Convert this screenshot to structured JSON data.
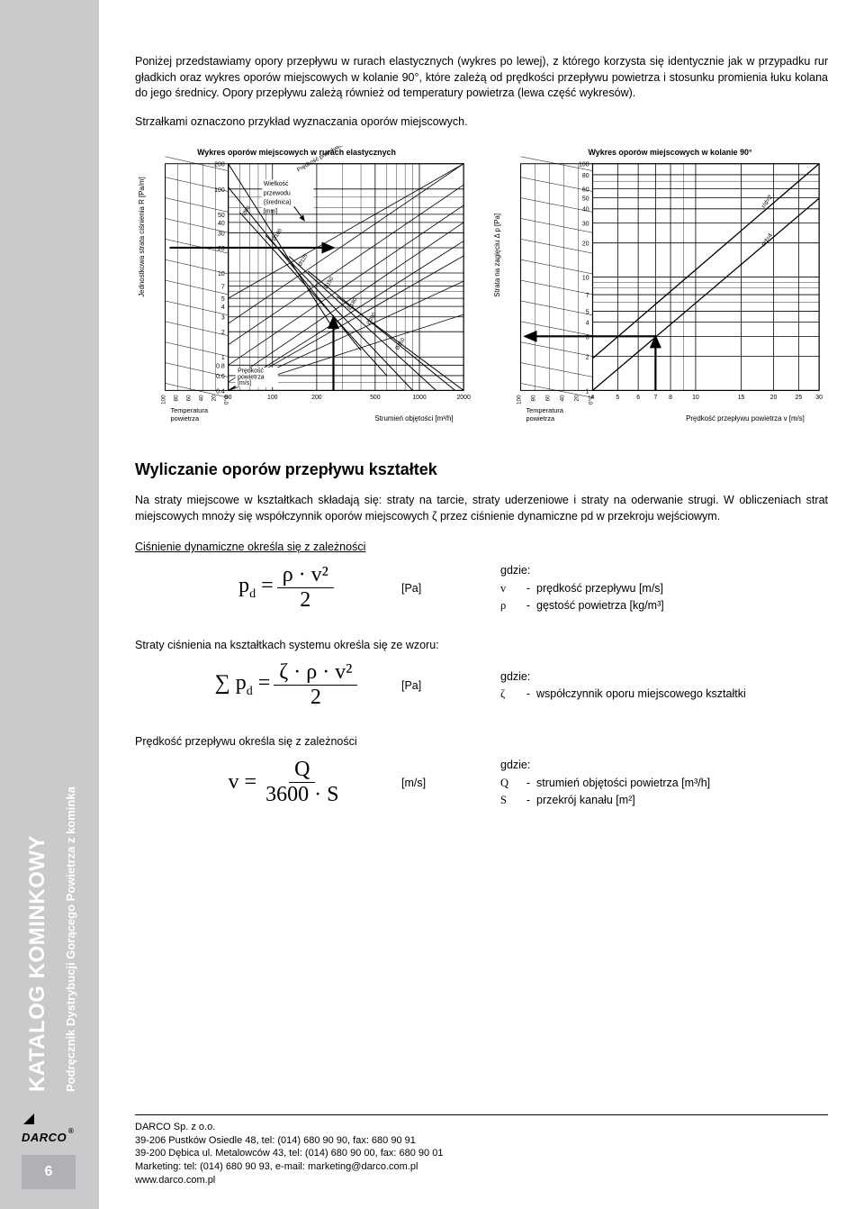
{
  "intro": {
    "p1": "Poniżej przedstawiamy opory przepływu w rurach elastycznych (wykres po lewej), z którego korzysta się identycznie jak w przypadku rur gładkich oraz wykres oporów miejscowych w kolanie 90°, które zależą od prędkości przepływu powietrza i stosunku promienia łuku kolana do jego średnicy. Opory przepływu zależą również od temperatury powietrza (lewa część wykresów).",
    "p2": "Strzałkami oznaczono przykład wyznaczania oporów miejscowych."
  },
  "chart_left": {
    "title": "Wykres oporów miejscowych w rurach elastycznych",
    "ylabel": "Jednostkowa strata ciśnienia R [Pa/m]",
    "xlabel": "Strumień objętości [m³/h]",
    "y_ticks": [
      200,
      100,
      50,
      40,
      30,
      20,
      10,
      7,
      5,
      4,
      3,
      2,
      1,
      0.8,
      0.6,
      0.4
    ],
    "x_ticks": [
      50,
      100,
      200,
      500,
      1000,
      2000
    ],
    "temp_ticks": [
      100,
      80,
      60,
      40,
      20,
      "0°C"
    ],
    "temp_label": "Temperatura powietrza",
    "note_size": "Wielkość przewodu (średnica) [mm]",
    "note_speed": "Prędkość przepływu powietrza [m/s]",
    "note_vel": "Prędkość powietrza [m/s]",
    "diameters": [
      "Ø80",
      "Ø100",
      "Ø125",
      "Ø150",
      "Ø180",
      "Ø200",
      "Ø250"
    ],
    "velocities": [
      "1",
      "2",
      "3",
      "4",
      "5",
      "7",
      "10",
      "14",
      "18"
    ]
  },
  "chart_right": {
    "title": "Wykres oporów miejscowych w kolanie 90°",
    "ylabel": "Strata na zagięciu Δ p [Pa]",
    "xlabel": "Prędkość przepływu powietrza v [m/s]",
    "y_ticks": [
      100,
      80,
      60,
      50,
      40,
      30,
      20,
      10,
      7,
      5,
      4,
      3,
      2,
      1
    ],
    "x_ticks": [
      4,
      5,
      6,
      7,
      8,
      10,
      15,
      20,
      25,
      30
    ],
    "temp_ticks": [
      100,
      80,
      60,
      40,
      20,
      "0°C"
    ],
    "temp_label": "Temperatura powietrza",
    "curves": [
      "r/d=2",
      "r/d=4"
    ]
  },
  "section_title": "Wyliczanie oporów przepływu kształtek",
  "section_p": "Na straty miejscowe w kształtkach składają się: straty na tarcie, straty uderzeniowe i straty na oderwanie strugi. W obliczeniach strat miejscowych mnoży się współczynnik oporów miejscowych ζ przez ciśnienie dynamiczne pd w przekroju wejściowym.",
  "formula1": {
    "heading": "Ciśnienie dynamiczne określa się z zależności",
    "lhs": "p",
    "sub": "d",
    "num": "ρ · v²",
    "den": "2",
    "unit": "[Pa]",
    "where_label": "gdzie:",
    "where": [
      {
        "sym": "v",
        "txt": "prędkość przepływu [m/s]"
      },
      {
        "sym": "ρ",
        "txt": "gęstość powietrza [kg/m³]"
      }
    ]
  },
  "formula2": {
    "heading": "Straty ciśnienia na kształtkach systemu określa się ze wzoru:",
    "lhs": "∑ p",
    "sub": "d",
    "num": "ζ · ρ · v²",
    "den": "2",
    "unit": "[Pa]",
    "where_label": "gdzie:",
    "where": [
      {
        "sym": "ζ",
        "txt": "współczynnik oporu miejscowego kształtki"
      }
    ]
  },
  "formula3": {
    "heading": "Prędkość przepływu określa się z zależności",
    "lhs": "v",
    "num": "Q",
    "den": "3600 · S",
    "unit": "[m/s]",
    "where_label": "gdzie:",
    "where": [
      {
        "sym": "Q",
        "txt": "strumień objętości powietrza [m³/h]"
      },
      {
        "sym": "S",
        "txt": "przekrój kanału [m²]"
      }
    ]
  },
  "sidebar": {
    "big": "KATALOG KOMINKOWY",
    "small": "Podręcznik Dystrybucji Gorącego Powietrza z kominka",
    "pagenum": "6",
    "logo": "DARCO"
  },
  "footer": {
    "l1": "DARCO Sp. z o.o.",
    "l2": "39-206 Pustków Osiedle 48, tel: (014) 680 90 90, fax: 680 90 91",
    "l3": "39-200 Dębica ul. Metalowców 43, tel: (014) 680 90 00, fax: 680 90 01",
    "l4": "Marketing: tel: (014) 680 90 93, e-mail: marketing@darco.com.pl",
    "l5": "www.darco.com.pl"
  },
  "colors": {
    "page_bg": "#ffffff",
    "outer_bg": "#c9cacc",
    "line": "#000000"
  }
}
